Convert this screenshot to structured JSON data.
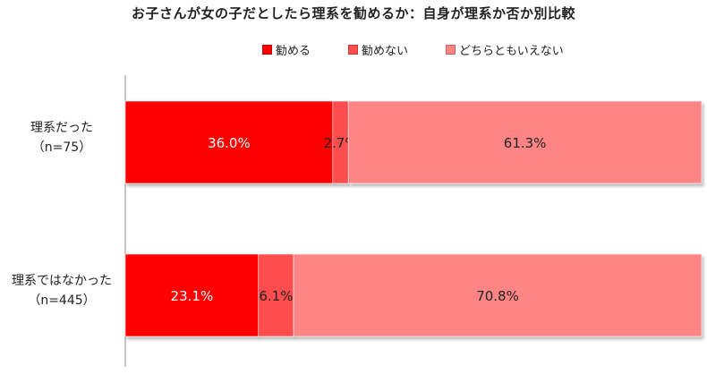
{
  "chart_data": {
    "type": "bar",
    "stacked": true,
    "orientation": "horizontal",
    "title": "お子さんが女の子だとしたら理系を勧めるか：自身が理系か否か別比較",
    "legend_position": "top",
    "categories": [
      {
        "label": "理系だった",
        "sub": "（n=75）"
      },
      {
        "label": "理系ではなかった",
        "sub": "（n=445）"
      }
    ],
    "series": [
      {
        "name": "勧める",
        "values": [
          36.0,
          23.1
        ],
        "labels": [
          "36.0%",
          "23.1%"
        ],
        "color": "#ff0000",
        "label_color": "#ffffff"
      },
      {
        "name": "勧めない",
        "values": [
          2.7,
          6.1
        ],
        "labels": [
          "2.7%",
          "6.1%"
        ],
        "color": "#ff4d4d",
        "label_color": "#222222"
      },
      {
        "name": "どちらともいえない",
        "values": [
          61.3,
          70.8
        ],
        "labels": [
          "61.3%",
          "70.8%"
        ],
        "color": "#ff8585",
        "label_color": "#222222"
      }
    ],
    "xlim": [
      0,
      100
    ],
    "grid": false
  }
}
